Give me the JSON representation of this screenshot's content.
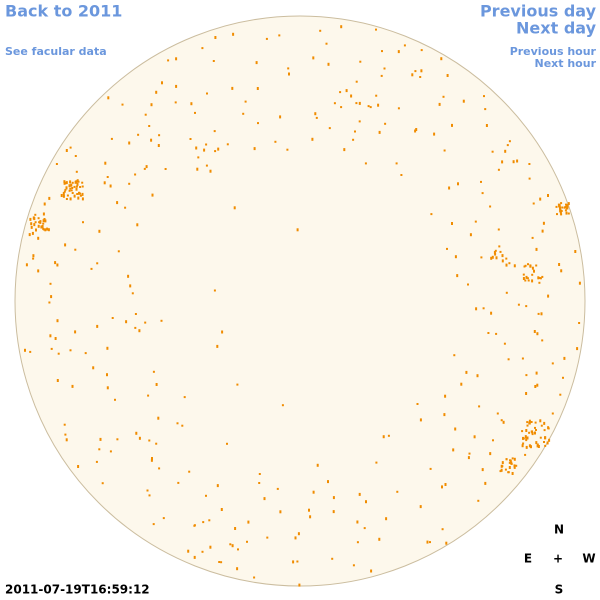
{
  "navigation": {
    "back": "Back to 2011",
    "facular_data": "See facular data",
    "previous_day": "Previous day",
    "next_day": "Next day",
    "previous_hour": "Previous hour",
    "next_hour": "Next hour"
  },
  "timestamp": "2011-07-19T16:59:12",
  "compass": {
    "north": "N",
    "east": "E",
    "center": "+",
    "west": "W",
    "south": "S"
  }
}
